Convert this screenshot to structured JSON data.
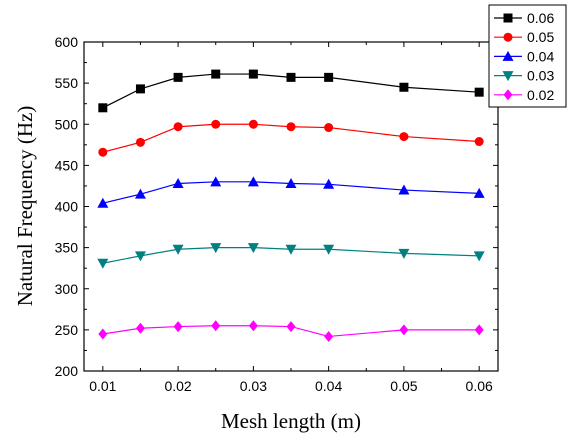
{
  "chart_data": {
    "type": "line",
    "title": "",
    "xlabel": "Mesh length (m)",
    "ylabel": "Natural Frequency (Hz)",
    "xlim": [
      0.0075,
      0.0625
    ],
    "ylim": [
      200,
      600
    ],
    "x_ticks": [
      "0.01",
      "0.02",
      "0.03",
      "0.04",
      "0.05",
      "0.06"
    ],
    "y_ticks": [
      "200",
      "250",
      "300",
      "350",
      "400",
      "450",
      "500",
      "550",
      "600"
    ],
    "x": [
      0.01,
      0.015,
      0.02,
      0.025,
      0.03,
      0.035,
      0.04,
      0.05,
      0.06
    ],
    "grid": false,
    "legend_position": "top-right",
    "series": [
      {
        "name": "0.06",
        "color": "#000000",
        "marker": "square",
        "values": [
          520,
          543,
          557,
          561,
          561,
          557,
          557,
          545,
          539
        ]
      },
      {
        "name": "0.05",
        "color": "#ff0000",
        "marker": "circle",
        "values": [
          466,
          478,
          497,
          500,
          500,
          497,
          496,
          485,
          479
        ]
      },
      {
        "name": "0.04",
        "color": "#0000ff",
        "marker": "triangle-up",
        "values": [
          404,
          415,
          428,
          430,
          430,
          428,
          427,
          420,
          416
        ]
      },
      {
        "name": "0.03",
        "color": "#008080",
        "marker": "triangle-down",
        "values": [
          331,
          340,
          348,
          350,
          350,
          348,
          348,
          343,
          340
        ]
      },
      {
        "name": "0.02",
        "color": "#ff00ff",
        "marker": "diamond",
        "values": [
          245,
          252,
          254,
          255,
          255,
          254,
          242,
          250,
          250
        ]
      }
    ]
  }
}
